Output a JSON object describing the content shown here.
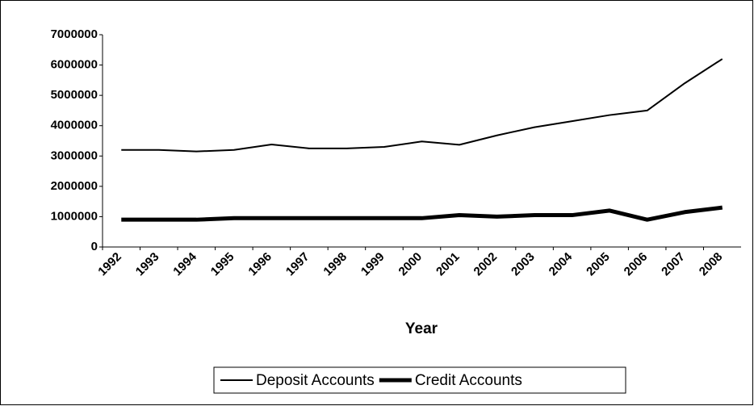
{
  "chart_data": {
    "type": "line",
    "x_label": "Year",
    "categories": [
      "1992",
      "1993",
      "1994",
      "1995",
      "1996",
      "1997",
      "1998",
      "1999",
      "2000",
      "2001",
      "2002",
      "2003",
      "2004",
      "2005",
      "2006",
      "2007",
      "2008"
    ],
    "series": [
      {
        "name": "Deposit Accounts",
        "color": "#000000",
        "width": 2,
        "values": [
          3200000,
          3200000,
          3150000,
          3200000,
          3380000,
          3250000,
          3250000,
          3300000,
          3480000,
          3370000,
          3680000,
          3950000,
          4150000,
          4350000,
          4500000,
          5400000,
          6200000
        ]
      },
      {
        "name": "Credit Accounts",
        "color": "#000000",
        "width": 5,
        "values": [
          900000,
          900000,
          900000,
          950000,
          950000,
          950000,
          950000,
          950000,
          950000,
          1050000,
          1000000,
          1050000,
          1050000,
          1200000,
          900000,
          1150000,
          1300000
        ]
      }
    ],
    "ylim": [
      0,
      7000000
    ],
    "yticks": [
      0,
      1000000,
      2000000,
      3000000,
      4000000,
      5000000,
      6000000,
      7000000
    ],
    "grid": false,
    "legend": "bottom"
  }
}
